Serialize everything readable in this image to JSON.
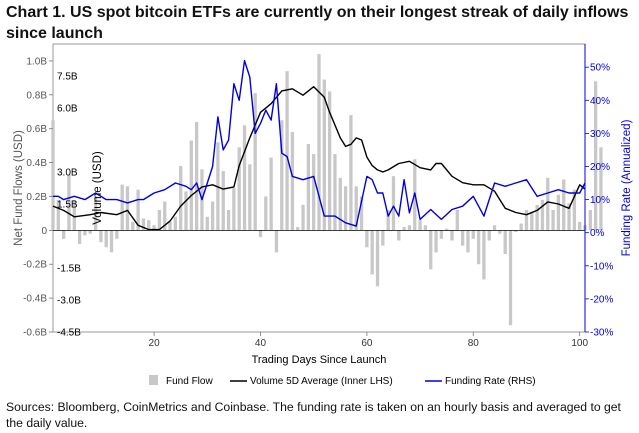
{
  "title": "Chart 1. US spot bitcoin ETFs are currently on their longest streak of daily inflows since launch",
  "source_note": "Sources: Bloomberg, CoinMetrics and Coinbase. The funding rate is taken on an hourly basis and averaged to get the daily value.",
  "colors": {
    "fund_flow": "#c8c8c8",
    "volume": "#000000",
    "funding": "#0000dd"
  },
  "chart_data": {
    "type": "bar",
    "title": "Chart 1. US spot bitcoin ETFs are currently on their longest streak of daily inflows since launch",
    "xlabel": "Trading Days Since Launch",
    "x_ticks": [
      20,
      40,
      60,
      80,
      100
    ],
    "xlim": [
      1,
      101
    ],
    "ylabel_left": "Net Fund Flows (USD)",
    "ylabel_inner": "Volume (USD)",
    "ylabel_right": "Funding Rate (Annualized)",
    "y_left": {
      "min": -0.6,
      "max": 1.1,
      "ticks": [
        -0.6,
        -0.4,
        -0.2,
        0,
        0.2,
        0.4,
        0.6,
        0.8,
        1.0
      ],
      "tick_labels": [
        "-0.6B",
        "-0.4B",
        "-0.2B",
        "0",
        "0.2B",
        "0.4B",
        "0.6B",
        "0.8B",
        "1.0B"
      ]
    },
    "y_inner": {
      "min": -4.5,
      "max": 9.0,
      "ticks": [
        -4.5,
        -3.0,
        -1.5,
        1.5,
        3.0,
        6.0,
        7.5
      ],
      "tick_labels": [
        "-4.5B",
        "-3.0B",
        "-1.5B",
        "1.5B",
        "3.0B",
        "6.0B",
        "7.5B"
      ]
    },
    "y_right": {
      "min": -30,
      "max": 57,
      "ticks": [
        -30,
        -20,
        -10,
        0,
        10,
        20,
        30,
        40,
        50
      ],
      "tick_labels": [
        "-30%",
        "-20%",
        "-10%",
        "0%",
        "10%",
        "20%",
        "30%",
        "40%",
        "50%"
      ]
    },
    "legend_position": "bottom",
    "grid": false,
    "series": [
      {
        "name": "Fund Flow",
        "type": "bar",
        "axis": "left",
        "unit": "USD billions",
        "values": [
          0.65,
          0.18,
          -0.05,
          0.33,
          0.18,
          -0.08,
          -0.03,
          -0.02,
          0.2,
          -0.07,
          -0.1,
          -0.13,
          -0.05,
          0.27,
          0.26,
          0.05,
          0.24,
          0.07,
          0.06,
          0.03,
          0.12,
          0.17,
          0.05,
          0.08,
          0.38,
          0.23,
          0.53,
          0.64,
          0.36,
          0.08,
          0.17,
          0.52,
          0.35,
          0.12,
          0.25,
          0.49,
          0.62,
          0.39,
          0.81,
          -0.04,
          0.2,
          0.43,
          -0.13,
          0.65,
          0.94,
          0.58,
          0.02,
          0.15,
          0.51,
          0.45,
          1.04,
          0.89,
          0.82,
          0.45,
          0.31,
          0.26,
          0.68,
          0.26,
          0.2,
          -0.1,
          -0.26,
          -0.33,
          -0.09,
          0.12,
          0.32,
          -0.06,
          0.02,
          0.03,
          0.42,
          0.06,
          0.03,
          -0.23,
          -0.13,
          -0.05,
          0.01,
          -0.06,
          0.12,
          -0.09,
          -0.13,
          -0.05,
          -0.2,
          -0.29,
          -0.06,
          0.03,
          -0.02,
          -0.14,
          -0.56,
          -0.01,
          0.04,
          0.12,
          0.11,
          0.15,
          0.18,
          0.31,
          0.12,
          0.21,
          0.3,
          0.16,
          0.24,
          0.05,
          0.03,
          0.12,
          0.88,
          0.49
        ]
      },
      {
        "name": "Volume 5D Average (Inner LHS)",
        "type": "line",
        "axis": "inner",
        "unit": "USD billions",
        "x": [
          1,
          3,
          5,
          8,
          10,
          13,
          15,
          17,
          19,
          21,
          23,
          25,
          27,
          29,
          31,
          33,
          35,
          36,
          38,
          40,
          42,
          44,
          46,
          48,
          50,
          52,
          53,
          54,
          55,
          56,
          57,
          58,
          59,
          60,
          61,
          62,
          63,
          64,
          66,
          68,
          70,
          72,
          73,
          74,
          76,
          78,
          80,
          82,
          84,
          86,
          88,
          90,
          92,
          94,
          96,
          98,
          100,
          101
        ],
        "values": [
          1.4,
          1.2,
          0.9,
          1.0,
          1.1,
          1.0,
          1.2,
          0.5,
          0.3,
          0.3,
          0.7,
          1.4,
          1.9,
          2.3,
          2.4,
          2.2,
          2.3,
          3.3,
          4.6,
          5.8,
          6.2,
          6.8,
          6.9,
          6.6,
          7.0,
          6.5,
          5.8,
          5.2,
          4.6,
          4.2,
          4.3,
          4.6,
          4.5,
          3.7,
          3.3,
          3.1,
          3.0,
          3.1,
          3.4,
          3.5,
          3.2,
          3.1,
          3.4,
          3.4,
          2.8,
          2.5,
          2.4,
          2.4,
          2.1,
          1.3,
          1.1,
          1.0,
          1.2,
          1.6,
          1.5,
          1.3,
          2.4,
          2.2
        ]
      },
      {
        "name": "Funding Rate (RHS)",
        "type": "line",
        "axis": "right",
        "unit": "% annualized",
        "x": [
          1,
          2,
          3,
          5,
          7,
          9,
          11,
          13,
          15,
          17,
          18,
          20,
          22,
          24,
          26,
          27,
          28,
          29,
          31,
          32,
          33,
          34,
          35,
          36,
          37,
          38,
          39,
          40,
          41,
          42,
          43,
          44,
          45,
          46,
          48,
          50,
          52,
          54,
          56,
          58,
          60,
          61,
          62,
          63,
          64,
          65,
          66,
          67,
          68,
          69,
          70,
          72,
          74,
          76,
          78,
          80,
          82,
          84,
          86,
          88,
          90,
          92,
          94,
          96,
          98,
          100,
          101
        ],
        "values": [
          11,
          11,
          10,
          11,
          10,
          12,
          10,
          10,
          9,
          10,
          10,
          12,
          13,
          15,
          14,
          13,
          15,
          10,
          20,
          35,
          25,
          28,
          45,
          40,
          52,
          47,
          30,
          33,
          37,
          34,
          45,
          24,
          23,
          17,
          16,
          17,
          5,
          5,
          3,
          2,
          17,
          16,
          12,
          12,
          5,
          8,
          5,
          16,
          6,
          12,
          4,
          7,
          4,
          7,
          8,
          11,
          5,
          15,
          14,
          15,
          16,
          11,
          12,
          13,
          12,
          12,
          15
        ]
      }
    ]
  }
}
